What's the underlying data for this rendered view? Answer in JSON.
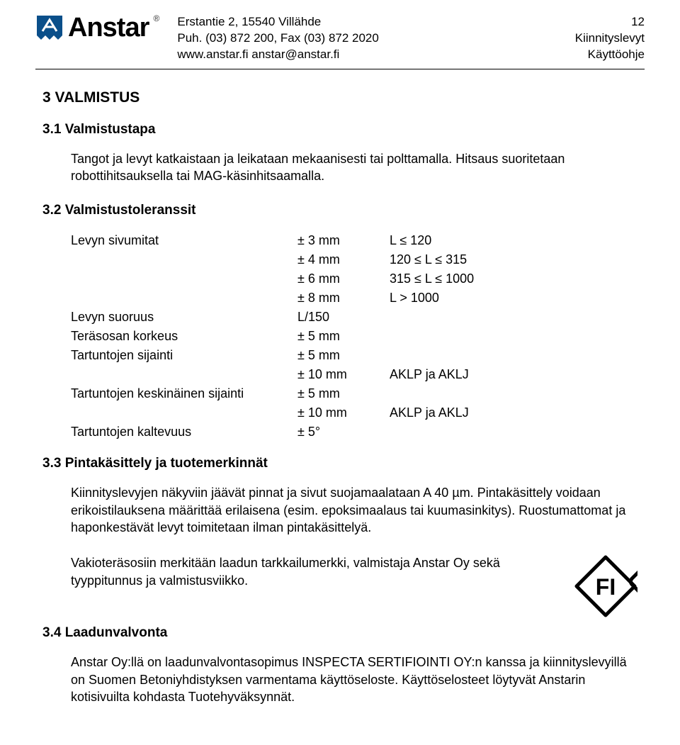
{
  "header": {
    "logo_text": "Anstar",
    "logo_color": "#0a4f8a",
    "address": "Erstantie 2,  15540 Villähde",
    "phone": "Puh. (03) 872 200,  Fax (03) 872 2020",
    "web": "www.anstar.fi   anstar@anstar.fi",
    "page_num": "12",
    "doc_title": "Kiinnityslevyt",
    "doc_sub": "Käyttöohje"
  },
  "section3": {
    "num_title": "3   VALMISTUS",
    "s31_title": "3.1  Valmistustapa",
    "s31_body": "Tangot ja levyt katkaistaan ja leikataan mekaanisesti tai polttamalla. Hitsaus suoritetaan robottihitsauksella tai MAG-käsinhitsaamalla.",
    "s32_title": "3.2  Valmistustoleranssit",
    "tol": {
      "rows": [
        {
          "c1": "Levyn sivumitat",
          "c2": "±  3 mm",
          "c3": "L ≤ 120"
        },
        {
          "c1": "",
          "c2": "±  4 mm",
          "c3": "120 ≤ L ≤ 315"
        },
        {
          "c1": "",
          "c2": "±  6 mm",
          "c3": "315 ≤ L ≤ 1000"
        },
        {
          "c1": "",
          "c2": "±  8 mm",
          "c3": "L > 1000"
        },
        {
          "c1": "Levyn suoruus",
          "c2": "L/150",
          "c3": ""
        },
        {
          "c1": "Teräsosan korkeus",
          "c2": "±  5 mm",
          "c3": ""
        },
        {
          "c1": "Tartuntojen sijainti",
          "c2": "±  5 mm",
          "c3": ""
        },
        {
          "c1": "",
          "c2": "± 10 mm",
          "c3": "AKLP ja AKLJ"
        },
        {
          "c1": "Tartuntojen keskinäinen sijainti",
          "c2": "±  5 mm",
          "c3": ""
        },
        {
          "c1": "",
          "c2": "± 10 mm",
          "c3": "AKLP ja AKLJ"
        },
        {
          "c1": "Tartuntojen kaltevuus",
          "c2": "± 5°",
          "c3": ""
        }
      ]
    },
    "s33_title": "3.3  Pintakäsittely ja tuotemerkinnät",
    "s33_p1": "Kiinnityslevyjen näkyviin jäävät pinnat ja sivut suojamaalataan A 40 µm. Pintakäsittely voidaan erikoistilauksena määrittää erilaisena (esim. epoksimaalaus tai kuumasinkitys). Ruostumattomat ja haponkestävät levyt toimitetaan ilman pintakäsittelyä.",
    "s33_p2": "Vakioteräsosiin merkitään laadun tarkkailumerkki, valmistaja Anstar Oy sekä tyyppitunnus ja valmistusviikko.",
    "fi_label": "FI",
    "s34_title": "3.4  Laadunvalvonta",
    "s34_body": "Anstar Oy:llä on laadunvalvontasopimus INSPECTA SERTIFIOINTI OY:n kanssa ja kiinnityslevyillä on Suomen Betoniyhdistyksen varmentama käyttöseloste. Käyttöselosteet löytyvät Anstarin kotisivuilta kohdasta Tuotehyväksynnät."
  }
}
